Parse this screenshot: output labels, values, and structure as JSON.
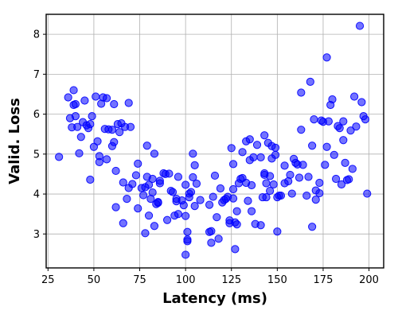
{
  "chart_data": {
    "type": "scatter",
    "title": "",
    "xlabel": "Latency (ms)",
    "ylabel": "Valid. Loss",
    "xlim": [
      24,
      208
    ],
    "ylim": [
      2.15,
      8.5
    ],
    "xticks": [
      25,
      50,
      75,
      100,
      125,
      150,
      175,
      200
    ],
    "yticks": [
      3,
      4,
      5,
      6,
      7,
      8
    ],
    "grid": true,
    "legend": "none",
    "marker_color": "#0000ff",
    "marker_alpha": 0.55,
    "series": [
      {
        "points": [
          [
            31,
            4.93
          ],
          [
            36,
            6.42
          ],
          [
            37,
            5.9
          ],
          [
            38,
            5.67
          ],
          [
            39,
            6.23
          ],
          [
            39,
            6.6
          ],
          [
            40,
            6.25
          ],
          [
            40,
            5.95
          ],
          [
            41,
            5.68
          ],
          [
            42,
            5.02
          ],
          [
            43,
            5.43
          ],
          [
            44,
            5.8
          ],
          [
            45,
            6.34
          ],
          [
            46,
            5.72
          ],
          [
            47,
            5.65
          ],
          [
            48,
            4.36
          ],
          [
            48,
            5.75
          ],
          [
            49,
            5.95
          ],
          [
            50,
            5.18
          ],
          [
            51,
            6.44
          ],
          [
            52,
            5.32
          ],
          [
            53,
            4.95
          ],
          [
            53,
            4.8
          ],
          [
            54,
            6.26
          ],
          [
            55,
            6.42
          ],
          [
            56,
            5.63
          ],
          [
            57,
            6.4
          ],
          [
            57,
            4.87
          ],
          [
            58,
            5.62
          ],
          [
            60,
            5.61
          ],
          [
            60,
            5.2
          ],
          [
            61,
            6.25
          ],
          [
            61,
            5.3
          ],
          [
            62,
            4.58
          ],
          [
            62,
            3.67
          ],
          [
            63,
            5.75
          ],
          [
            64,
            5.55
          ],
          [
            65,
            5.77
          ],
          [
            66,
            4.29
          ],
          [
            66,
            3.27
          ],
          [
            67,
            5.68
          ],
          [
            68,
            3.88
          ],
          [
            69,
            6.28
          ],
          [
            69,
            4.15
          ],
          [
            70,
            5.68
          ],
          [
            71,
            4.25
          ],
          [
            73,
            4.47
          ],
          [
            74,
            3.64
          ],
          [
            74,
            4.76
          ],
          [
            76,
            4.15
          ],
          [
            77,
            3.97
          ],
          [
            78,
            3.02
          ],
          [
            78,
            4.17
          ],
          [
            79,
            5.21
          ],
          [
            79,
            4.43
          ],
          [
            80,
            4.23
          ],
          [
            80,
            3.46
          ],
          [
            81,
            3.88
          ],
          [
            82,
            4.38
          ],
          [
            82,
            4.04
          ],
          [
            83,
            3.2
          ],
          [
            83,
            5.01
          ],
          [
            84,
            3.75
          ],
          [
            85,
            3.78
          ],
          [
            85,
            3.8
          ],
          [
            86,
            4.33
          ],
          [
            86,
            4.27
          ],
          [
            88,
            4.52
          ],
          [
            89,
            4.5
          ],
          [
            90,
            3.35
          ],
          [
            91,
            4.51
          ],
          [
            92,
            4.08
          ],
          [
            93,
            4.05
          ],
          [
            94,
            3.46
          ],
          [
            95,
            3.88
          ],
          [
            95,
            3.82
          ],
          [
            96,
            4.43
          ],
          [
            96,
            3.5
          ],
          [
            98,
            3.84
          ],
          [
            99,
            3.72
          ],
          [
            100,
            3.45
          ],
          [
            100,
            4.23
          ],
          [
            100,
            2.48
          ],
          [
            101,
            2.86
          ],
          [
            101,
            2.82
          ],
          [
            101,
            3.05
          ],
          [
            102,
            3.92
          ],
          [
            102,
            4.01
          ],
          [
            103,
            4.05
          ],
          [
            104,
            5.01
          ],
          [
            104,
            4.42
          ],
          [
            105,
            3.7
          ],
          [
            105,
            4.72
          ],
          [
            106,
            4.26
          ],
          [
            108,
            3.85
          ],
          [
            113,
            3.73
          ],
          [
            113,
            3.05
          ],
          [
            114,
            2.78
          ],
          [
            114,
            3.07
          ],
          [
            115,
            3.93
          ],
          [
            116,
            4.46
          ],
          [
            117,
            3.42
          ],
          [
            118,
            2.88
          ],
          [
            119,
            4.14
          ],
          [
            120,
            3.79
          ],
          [
            121,
            3.85
          ],
          [
            122,
            3.88
          ],
          [
            123,
            3.93
          ],
          [
            124,
            3.34
          ],
          [
            124,
            3.27
          ],
          [
            125,
            5.15
          ],
          [
            126,
            4.12
          ],
          [
            126,
            4.75
          ],
          [
            126,
            3.89
          ],
          [
            127,
            3.29
          ],
          [
            127,
            2.62
          ],
          [
            128,
            3.57
          ],
          [
            128,
            3.24
          ],
          [
            129,
            4.27
          ],
          [
            130,
            4.38
          ],
          [
            131,
            4.4
          ],
          [
            131,
            5.05
          ],
          [
            133,
            4.28
          ],
          [
            133,
            5.32
          ],
          [
            134,
            3.83
          ],
          [
            135,
            5.37
          ],
          [
            135,
            4.85
          ],
          [
            136,
            3.57
          ],
          [
            136,
            4.22
          ],
          [
            137,
            4.92
          ],
          [
            138,
            3.25
          ],
          [
            139,
            5.23
          ],
          [
            141,
            3.22
          ],
          [
            141,
            4.92
          ],
          [
            142,
            3.92
          ],
          [
            143,
            4.52
          ],
          [
            143,
            5.47
          ],
          [
            143,
            4.48
          ],
          [
            144,
            4.27
          ],
          [
            144,
            3.92
          ],
          [
            145,
            5.28
          ],
          [
            146,
            4.08
          ],
          [
            146,
            4.45
          ],
          [
            147,
            5.2
          ],
          [
            147,
            4.89
          ],
          [
            148,
            4.24
          ],
          [
            149,
            4.98
          ],
          [
            149,
            5.16
          ],
          [
            150,
            3.92
          ],
          [
            150,
            3.06
          ],
          [
            151,
            3.96
          ],
          [
            152,
            3.96
          ],
          [
            154,
            4.71
          ],
          [
            154,
            4.27
          ],
          [
            156,
            4.32
          ],
          [
            157,
            4.48
          ],
          [
            158,
            4.01
          ],
          [
            159,
            4.88
          ],
          [
            160,
            4.78
          ],
          [
            161,
            4.74
          ],
          [
            162,
            4.41
          ],
          [
            163,
            5.61
          ],
          [
            163,
            6.54
          ],
          [
            164,
            4.73
          ],
          [
            166,
            3.96
          ],
          [
            167,
            4.43
          ],
          [
            168,
            6.81
          ],
          [
            169,
            5.21
          ],
          [
            169,
            3.18
          ],
          [
            170,
            5.87
          ],
          [
            171,
            3.86
          ],
          [
            171,
            4.09
          ],
          [
            173,
            4.28
          ],
          [
            173,
            4.02
          ],
          [
            174,
            5.84
          ],
          [
            175,
            5.81
          ],
          [
            176,
            4.73
          ],
          [
            177,
            5.18
          ],
          [
            177,
            7.42
          ],
          [
            178,
            5.82
          ],
          [
            179,
            6.23
          ],
          [
            180,
            6.37
          ],
          [
            181,
            4.98
          ],
          [
            182,
            4.38
          ],
          [
            183,
            5.7
          ],
          [
            184,
            5.65
          ],
          [
            185,
            4.24
          ],
          [
            186,
            5.35
          ],
          [
            186,
            5.82
          ],
          [
            187,
            4.78
          ],
          [
            188,
            4.35
          ],
          [
            189,
            4.37
          ],
          [
            190,
            5.59
          ],
          [
            191,
            4.63
          ],
          [
            192,
            6.44
          ],
          [
            193,
            5.69
          ],
          [
            195,
            8.21
          ],
          [
            196,
            6.3
          ],
          [
            197,
            5.95
          ],
          [
            198,
            5.87
          ],
          [
            199,
            4.01
          ]
        ]
      }
    ]
  }
}
